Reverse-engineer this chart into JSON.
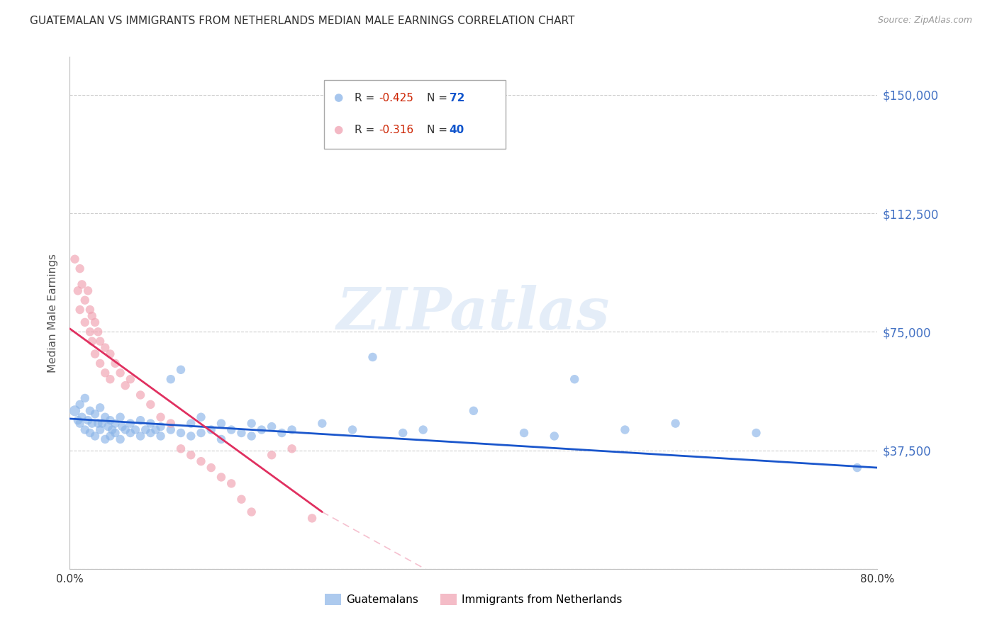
{
  "title": "GUATEMALAN VS IMMIGRANTS FROM NETHERLANDS MEDIAN MALE EARNINGS CORRELATION CHART",
  "source": "Source: ZipAtlas.com",
  "ylabel": "Median Male Earnings",
  "yticks": [
    0,
    37500,
    75000,
    112500,
    150000
  ],
  "ytick_labels": [
    "",
    "$37,500",
    "$75,000",
    "$112,500",
    "$150,000"
  ],
  "ylim": [
    0,
    162000
  ],
  "xlim": [
    0.0,
    0.8
  ],
  "xticks": [
    0.0,
    0.1,
    0.2,
    0.3,
    0.4,
    0.5,
    0.6,
    0.7,
    0.8
  ],
  "xtick_labels": [
    "0.0%",
    "",
    "",
    "",
    "",
    "",
    "",
    "",
    "80.0%"
  ],
  "blue_color": "#8ab4e8",
  "pink_color": "#f0a0b0",
  "blue_line_color": "#1a56cc",
  "pink_line_color": "#e03060",
  "legend_R_blue": "-0.425",
  "legend_N_blue": "72",
  "legend_R_pink": "-0.316",
  "legend_N_pink": "40",
  "legend_label_blue": "Guatemalans",
  "legend_label_pink": "Immigrants from Netherlands",
  "watermark": "ZIPatlas",
  "background_color": "#ffffff",
  "blue_scatter_x": [
    0.005,
    0.008,
    0.01,
    0.01,
    0.012,
    0.015,
    0.015,
    0.018,
    0.02,
    0.02,
    0.022,
    0.025,
    0.025,
    0.028,
    0.03,
    0.03,
    0.032,
    0.035,
    0.035,
    0.038,
    0.04,
    0.04,
    0.042,
    0.045,
    0.045,
    0.05,
    0.05,
    0.052,
    0.055,
    0.06,
    0.06,
    0.065,
    0.07,
    0.07,
    0.075,
    0.08,
    0.08,
    0.085,
    0.09,
    0.09,
    0.1,
    0.1,
    0.11,
    0.11,
    0.12,
    0.12,
    0.13,
    0.13,
    0.14,
    0.15,
    0.15,
    0.16,
    0.17,
    0.18,
    0.18,
    0.19,
    0.2,
    0.21,
    0.22,
    0.25,
    0.28,
    0.3,
    0.33,
    0.35,
    0.4,
    0.45,
    0.48,
    0.5,
    0.55,
    0.6,
    0.68,
    0.78
  ],
  "blue_scatter_y": [
    50000,
    47000,
    52000,
    46000,
    48000,
    54000,
    44000,
    47000,
    50000,
    43000,
    46000,
    49000,
    42000,
    46000,
    51000,
    44000,
    46000,
    48000,
    41000,
    45000,
    47000,
    42000,
    44000,
    46000,
    43000,
    48000,
    41000,
    45000,
    44000,
    46000,
    43000,
    44000,
    47000,
    42000,
    44000,
    46000,
    43000,
    44000,
    45000,
    42000,
    60000,
    44000,
    63000,
    43000,
    46000,
    42000,
    48000,
    43000,
    44000,
    46000,
    41000,
    44000,
    43000,
    46000,
    42000,
    44000,
    45000,
    43000,
    44000,
    46000,
    44000,
    67000,
    43000,
    44000,
    50000,
    43000,
    42000,
    60000,
    44000,
    46000,
    43000,
    32000
  ],
  "pink_scatter_x": [
    0.005,
    0.008,
    0.01,
    0.01,
    0.012,
    0.015,
    0.015,
    0.018,
    0.02,
    0.02,
    0.022,
    0.022,
    0.025,
    0.025,
    0.028,
    0.03,
    0.03,
    0.035,
    0.035,
    0.04,
    0.04,
    0.045,
    0.05,
    0.055,
    0.06,
    0.07,
    0.08,
    0.09,
    0.1,
    0.11,
    0.12,
    0.13,
    0.14,
    0.15,
    0.16,
    0.17,
    0.18,
    0.2,
    0.22,
    0.24
  ],
  "pink_scatter_y": [
    98000,
    88000,
    95000,
    82000,
    90000,
    85000,
    78000,
    88000,
    82000,
    75000,
    80000,
    72000,
    78000,
    68000,
    75000,
    72000,
    65000,
    70000,
    62000,
    68000,
    60000,
    65000,
    62000,
    58000,
    60000,
    55000,
    52000,
    48000,
    46000,
    38000,
    36000,
    34000,
    32000,
    29000,
    27000,
    22000,
    18000,
    36000,
    38000,
    16000
  ],
  "blue_scatter_sizes": [
    120,
    80,
    80,
    80,
    80,
    80,
    80,
    80,
    80,
    80,
    80,
    80,
    80,
    80,
    80,
    80,
    80,
    80,
    80,
    80,
    80,
    80,
    80,
    80,
    80,
    80,
    80,
    80,
    80,
    80,
    80,
    80,
    80,
    80,
    80,
    80,
    80,
    80,
    80,
    80,
    80,
    80,
    80,
    80,
    80,
    80,
    80,
    80,
    80,
    80,
    80,
    80,
    80,
    80,
    80,
    80,
    80,
    80,
    80,
    80,
    80,
    80,
    80,
    80,
    80,
    80,
    80,
    80,
    80,
    80,
    80,
    80
  ],
  "pink_scatter_sizes": [
    80,
    80,
    80,
    80,
    80,
    80,
    80,
    80,
    80,
    80,
    80,
    80,
    80,
    80,
    80,
    80,
    80,
    80,
    80,
    80,
    80,
    80,
    80,
    80,
    80,
    80,
    80,
    80,
    80,
    80,
    80,
    80,
    80,
    80,
    80,
    80,
    80,
    80,
    80,
    80
  ]
}
